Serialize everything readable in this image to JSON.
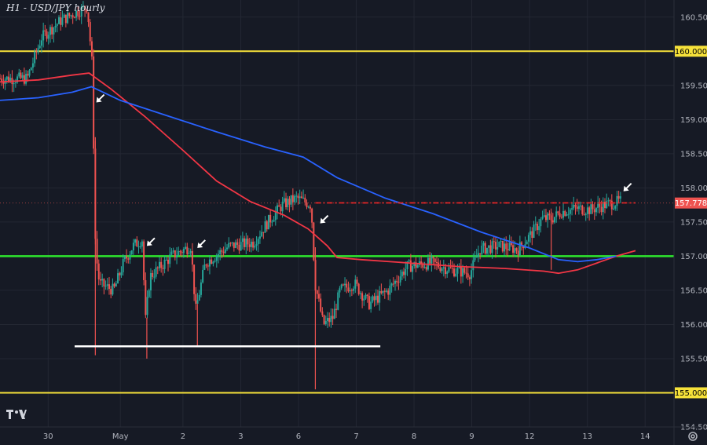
{
  "title": "H1 - USD/JPY hourly",
  "logo_icon": "tradingview-logo-icon",
  "settings_icon": "gear-icon",
  "colors": {
    "background": "#161a25",
    "up": "#26a69a",
    "down": "#ef5350",
    "ma_red": "#f23645",
    "ma_blue": "#2962ff",
    "level_yellow": "#f7e23a",
    "level_green": "#2ee62e",
    "support_white": "#ffffff",
    "resistance_red": "#e32222"
  },
  "chart_data": {
    "type": "candlestick",
    "ylim": [
      154.5,
      160.75
    ],
    "y_ticks": [
      "160.500",
      "159.500",
      "159.000",
      "158.500",
      "158.000",
      "157.500",
      "157.000",
      "156.500",
      "156.000",
      "155.500",
      "154.500"
    ],
    "x_ticks": [
      "30",
      "May",
      "2",
      "3",
      "6",
      "7",
      "8",
      "9",
      "12",
      "13",
      "14"
    ],
    "x_range": [
      0,
      14
    ],
    "x_tick_positions": [
      1,
      2.5,
      3.8,
      5,
      6.2,
      7.4,
      8.6,
      9.8,
      11,
      12.2,
      13.4
    ],
    "last_price": "157.778",
    "levels": [
      {
        "label": "160.000",
        "value": 160.0,
        "color": "yellow"
      },
      {
        "label": "155.000",
        "value": 155.0,
        "color": "yellow"
      },
      {
        "value": 157.0,
        "color": "green"
      }
    ],
    "support_line": {
      "value": 155.68,
      "x_from": 1.55,
      "x_to": 7.9
    },
    "resistance_line": {
      "value": 157.78,
      "x_from": 6.55,
      "x_to": 13.2
    },
    "arrow_points": [
      [
        2.0,
        159.25
      ],
      [
        3.05,
        157.15
      ],
      [
        4.1,
        157.12
      ],
      [
        6.65,
        157.48
      ],
      [
        12.95,
        157.95
      ]
    ],
    "series": [
      {
        "type": "ma",
        "color": "red",
        "points": [
          [
            0,
            159.55
          ],
          [
            0.8,
            159.58
          ],
          [
            1.5,
            159.65
          ],
          [
            1.85,
            159.68
          ],
          [
            2.3,
            159.45
          ],
          [
            3.0,
            159.05
          ],
          [
            3.8,
            158.55
          ],
          [
            4.5,
            158.1
          ],
          [
            5.2,
            157.8
          ],
          [
            5.9,
            157.6
          ],
          [
            6.4,
            157.4
          ],
          [
            6.8,
            157.15
          ],
          [
            7.0,
            156.98
          ],
          [
            7.5,
            156.95
          ],
          [
            8.5,
            156.9
          ],
          [
            9.5,
            156.85
          ],
          [
            10.5,
            156.82
          ],
          [
            11.3,
            156.78
          ],
          [
            11.6,
            156.75
          ],
          [
            12.0,
            156.8
          ],
          [
            12.4,
            156.9
          ],
          [
            12.8,
            157.0
          ],
          [
            13.2,
            157.08
          ]
        ]
      },
      {
        "type": "ma",
        "color": "blue",
        "points": [
          [
            0,
            159.28
          ],
          [
            0.8,
            159.32
          ],
          [
            1.5,
            159.4
          ],
          [
            1.9,
            159.48
          ],
          [
            2.5,
            159.28
          ],
          [
            3.5,
            159.05
          ],
          [
            4.5,
            158.82
          ],
          [
            5.5,
            158.6
          ],
          [
            6.3,
            158.45
          ],
          [
            7.0,
            158.15
          ],
          [
            8.0,
            157.85
          ],
          [
            9.0,
            157.62
          ],
          [
            10.0,
            157.35
          ],
          [
            11.0,
            157.12
          ],
          [
            11.6,
            156.95
          ],
          [
            12.0,
            156.92
          ],
          [
            12.4,
            156.95
          ],
          [
            12.8,
            157.0
          ]
        ]
      }
    ],
    "ohlc_keypoints": [
      [
        0,
        159.6
      ],
      [
        0.6,
        159.6
      ],
      [
        0.9,
        160.2
      ],
      [
        1.3,
        160.45
      ],
      [
        1.7,
        160.6
      ],
      [
        1.85,
        160.65
      ],
      [
        1.95,
        159.8
      ],
      [
        2.02,
        157.1
      ],
      [
        2.1,
        156.6
      ],
      [
        2.4,
        156.5
      ],
      [
        2.6,
        156.9
      ],
      [
        2.8,
        157.15
      ],
      [
        3.0,
        157.25
      ],
      [
        3.05,
        156.0
      ],
      [
        3.15,
        156.7
      ],
      [
        3.6,
        157.0
      ],
      [
        4.0,
        157.15
      ],
      [
        4.1,
        156.2
      ],
      [
        4.3,
        156.9
      ],
      [
        4.8,
        157.15
      ],
      [
        5.3,
        157.2
      ],
      [
        5.6,
        157.5
      ],
      [
        5.9,
        157.75
      ],
      [
        6.2,
        157.85
      ],
      [
        6.5,
        157.75
      ],
      [
        6.58,
        156.6
      ],
      [
        6.75,
        156.0
      ],
      [
        6.95,
        156.1
      ],
      [
        7.1,
        156.5
      ],
      [
        7.4,
        156.6
      ],
      [
        7.7,
        156.3
      ],
      [
        8.1,
        156.5
      ],
      [
        8.5,
        156.85
      ],
      [
        9.0,
        156.9
      ],
      [
        9.4,
        156.8
      ],
      [
        9.8,
        156.75
      ],
      [
        10.0,
        157.1
      ],
      [
        10.4,
        157.15
      ],
      [
        10.8,
        157.1
      ],
      [
        11.1,
        157.35
      ],
      [
        11.3,
        157.55
      ],
      [
        11.5,
        157.55
      ],
      [
        11.7,
        157.65
      ],
      [
        12.0,
        157.7
      ],
      [
        12.3,
        157.68
      ],
      [
        12.6,
        157.75
      ],
      [
        12.9,
        157.8
      ]
    ],
    "wick_spikes": [
      [
        1.98,
        155.55
      ],
      [
        3.05,
        155.5
      ],
      [
        4.1,
        155.68
      ],
      [
        6.55,
        155.05
      ],
      [
        11.45,
        156.8
      ]
    ]
  }
}
